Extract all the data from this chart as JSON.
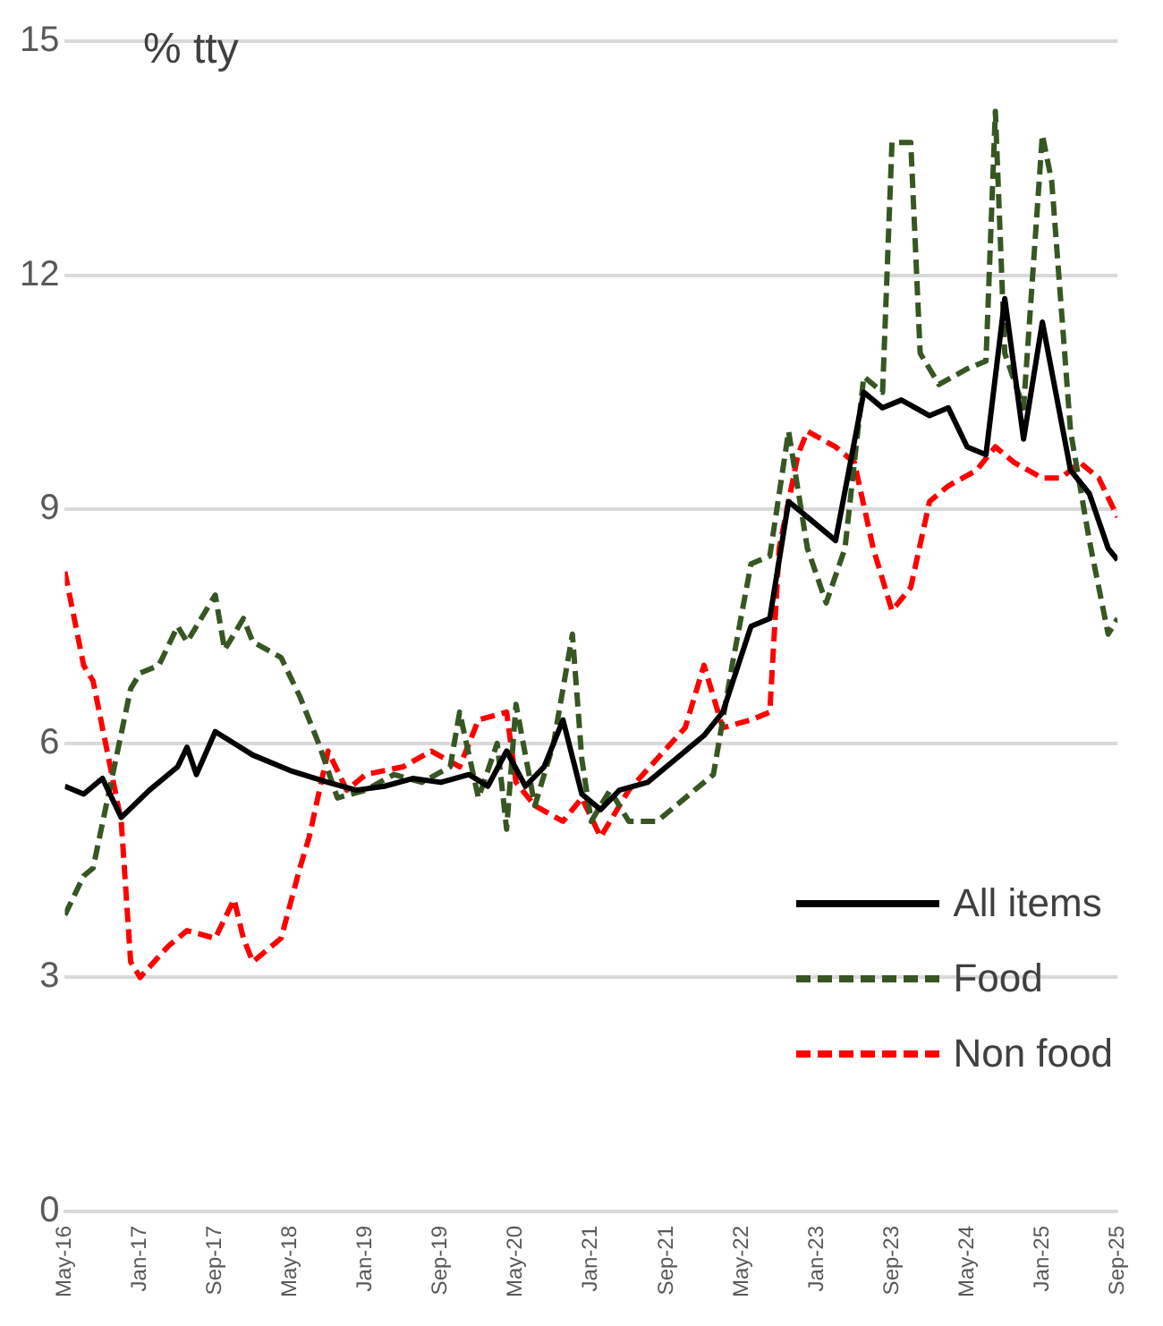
{
  "chart_data": {
    "type": "line",
    "ylabel": "% tty",
    "xlim": [
      "2016-05",
      "2025-09"
    ],
    "ylim": [
      0,
      15
    ],
    "yticks": [
      0,
      3,
      6,
      9,
      12,
      15
    ],
    "xticks": [
      {
        "value": "2016-05",
        "label": "May-16"
      },
      {
        "value": "2017-01",
        "label": "Jan-17"
      },
      {
        "value": "2017-09",
        "label": "Sep-17"
      },
      {
        "value": "2018-05",
        "label": "May-18"
      },
      {
        "value": "2019-01",
        "label": "Jan-19"
      },
      {
        "value": "2019-09",
        "label": "Sep-19"
      },
      {
        "value": "2020-05",
        "label": "May-20"
      },
      {
        "value": "2021-01",
        "label": "Jan-21"
      },
      {
        "value": "2021-09",
        "label": "Sep-21"
      },
      {
        "value": "2022-05",
        "label": "May-22"
      },
      {
        "value": "2023-01",
        "label": "Jan-23"
      },
      {
        "value": "2023-09",
        "label": "Sep-23"
      },
      {
        "value": "2024-05",
        "label": "May-24"
      },
      {
        "value": "2025-01",
        "label": "Jan-25"
      },
      {
        "value": "2025-09",
        "label": "Sep-25"
      }
    ],
    "grid": "y",
    "legend": "bottom right",
    "marker": "none",
    "series": [
      {
        "name": "All items",
        "color": "#000000",
        "line_style": "solid",
        "x": [
          "2016-05",
          "2016-07",
          "2016-09",
          "2016-11",
          "2017-02",
          "2017-05",
          "2017-06",
          "2017-07",
          "2017-09",
          "2017-11",
          "2018-01",
          "2018-05",
          "2018-09",
          "2018-12",
          "2019-03",
          "2019-06",
          "2019-09",
          "2019-12",
          "2020-02",
          "2020-04",
          "2020-06",
          "2020-08",
          "2020-10",
          "2020-12",
          "2021-02",
          "2021-04",
          "2021-07",
          "2021-10",
          "2022-01",
          "2022-03",
          "2022-06",
          "2022-08",
          "2022-10",
          "2022-12",
          "2023-03",
          "2023-06",
          "2023-08",
          "2023-10",
          "2024-01",
          "2024-03",
          "2024-05",
          "2024-07",
          "2024-09",
          "2024-11",
          "2025-01",
          "2025-04",
          "2025-06",
          "2025-08",
          "2025-09"
        ],
        "values": [
          5.45,
          5.35,
          5.55,
          5.05,
          5.4,
          5.7,
          5.95,
          5.6,
          6.15,
          6.0,
          5.85,
          5.65,
          5.5,
          5.4,
          5.45,
          5.55,
          5.5,
          5.6,
          5.45,
          5.9,
          5.45,
          5.7,
          6.3,
          5.35,
          5.15,
          5.4,
          5.5,
          5.8,
          6.1,
          6.4,
          7.5,
          7.6,
          9.1,
          8.9,
          8.6,
          10.5,
          10.3,
          10.4,
          10.2,
          10.3,
          9.8,
          9.7,
          11.7,
          9.9,
          11.4,
          9.5,
          9.2,
          8.5,
          8.35
        ]
      },
      {
        "name": "Food",
        "color": "#375623",
        "line_style": "dashed",
        "x": [
          "2016-05",
          "2016-07",
          "2016-08",
          "2016-12",
          "2017-01",
          "2017-03",
          "2017-05",
          "2017-06",
          "2017-09",
          "2017-10",
          "2017-12",
          "2018-01",
          "2018-04",
          "2018-06",
          "2018-08",
          "2018-10",
          "2019-01",
          "2019-04",
          "2019-07",
          "2019-10",
          "2019-11",
          "2020-01",
          "2020-03",
          "2020-04",
          "2020-05",
          "2020-07",
          "2020-09",
          "2020-11",
          "2020-12",
          "2021-01",
          "2021-03",
          "2021-05",
          "2021-08",
          "2021-11",
          "2022-02",
          "2022-04",
          "2022-06",
          "2022-08",
          "2022-10",
          "2022-12",
          "2023-02",
          "2023-04",
          "2023-06",
          "2023-08",
          "2023-09",
          "2023-11",
          "2023-12",
          "2024-02",
          "2024-05",
          "2024-07",
          "2024-08",
          "2024-09",
          "2024-11",
          "2025-01",
          "2025-02",
          "2025-04",
          "2025-06",
          "2025-08",
          "2025-09"
        ],
        "values": [
          3.8,
          4.3,
          4.4,
          6.7,
          6.9,
          7.0,
          7.5,
          7.3,
          7.9,
          7.2,
          7.6,
          7.3,
          7.1,
          6.6,
          6.0,
          5.3,
          5.4,
          5.6,
          5.5,
          5.7,
          6.4,
          5.3,
          6.0,
          4.9,
          6.5,
          5.2,
          6.0,
          7.4,
          5.8,
          5.0,
          5.4,
          5.0,
          5.0,
          5.3,
          5.6,
          7.0,
          8.3,
          8.4,
          10.0,
          8.5,
          7.8,
          8.5,
          10.7,
          10.5,
          13.7,
          13.7,
          11.0,
          10.6,
          10.8,
          10.9,
          14.1,
          11.0,
          10.3,
          13.8,
          13.2,
          10.0,
          8.6,
          7.4,
          7.6
        ]
      },
      {
        "name": "Non food",
        "color": "#ff0000",
        "line_style": "dashed",
        "x": [
          "2016-05",
          "2016-07",
          "2016-08",
          "2016-11",
          "2016-12",
          "2017-01",
          "2017-04",
          "2017-06",
          "2017-09",
          "2017-11",
          "2017-12",
          "2018-01",
          "2018-04",
          "2018-06",
          "2018-07",
          "2018-09",
          "2018-11",
          "2019-01",
          "2019-05",
          "2019-08",
          "2019-11",
          "2020-01",
          "2020-04",
          "2020-05",
          "2020-07",
          "2020-10",
          "2020-12",
          "2021-02",
          "2021-05",
          "2021-08",
          "2021-11",
          "2022-01",
          "2022-03",
          "2022-06",
          "2022-08",
          "2022-09",
          "2022-11",
          "2022-12",
          "2023-03",
          "2023-05",
          "2023-07",
          "2023-09",
          "2023-11",
          "2024-01",
          "2024-03",
          "2024-06",
          "2024-08",
          "2024-10",
          "2025-01",
          "2025-03",
          "2025-05",
          "2025-07",
          "2025-09"
        ],
        "values": [
          8.2,
          7.0,
          6.8,
          5.0,
          3.2,
          3.0,
          3.4,
          3.6,
          3.5,
          4.0,
          3.5,
          3.2,
          3.5,
          4.4,
          4.8,
          5.9,
          5.4,
          5.6,
          5.7,
          5.9,
          5.7,
          6.3,
          6.4,
          5.5,
          5.2,
          5.0,
          5.3,
          4.8,
          5.4,
          5.8,
          6.2,
          7.0,
          6.2,
          6.3,
          6.4,
          8.5,
          9.7,
          10.0,
          9.8,
          9.6,
          8.5,
          7.7,
          8.0,
          9.1,
          9.3,
          9.5,
          9.8,
          9.6,
          9.4,
          9.4,
          9.6,
          9.4,
          8.9
        ]
      }
    ]
  }
}
